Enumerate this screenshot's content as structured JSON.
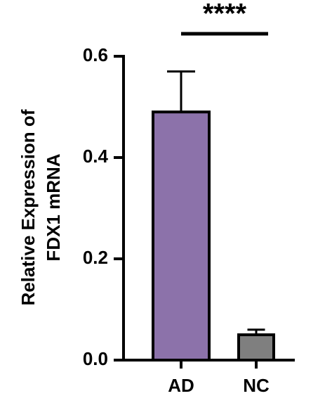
{
  "chart_data": {
    "type": "bar",
    "ylabel": [
      "Relative  Expression of",
      "FDX1 mRNA"
    ],
    "categories": [
      "AD",
      "NC"
    ],
    "values": [
      0.49,
      0.05
    ],
    "errors": [
      0.08,
      0.01
    ],
    "colors": [
      "#8c72aa",
      "#7f7f7f"
    ],
    "ylim": [
      0,
      0.6
    ],
    "yticks": [
      {
        "value": 0,
        "label": "0.0"
      },
      0.2,
      0.4,
      0.6
    ],
    "annotation": "****"
  }
}
